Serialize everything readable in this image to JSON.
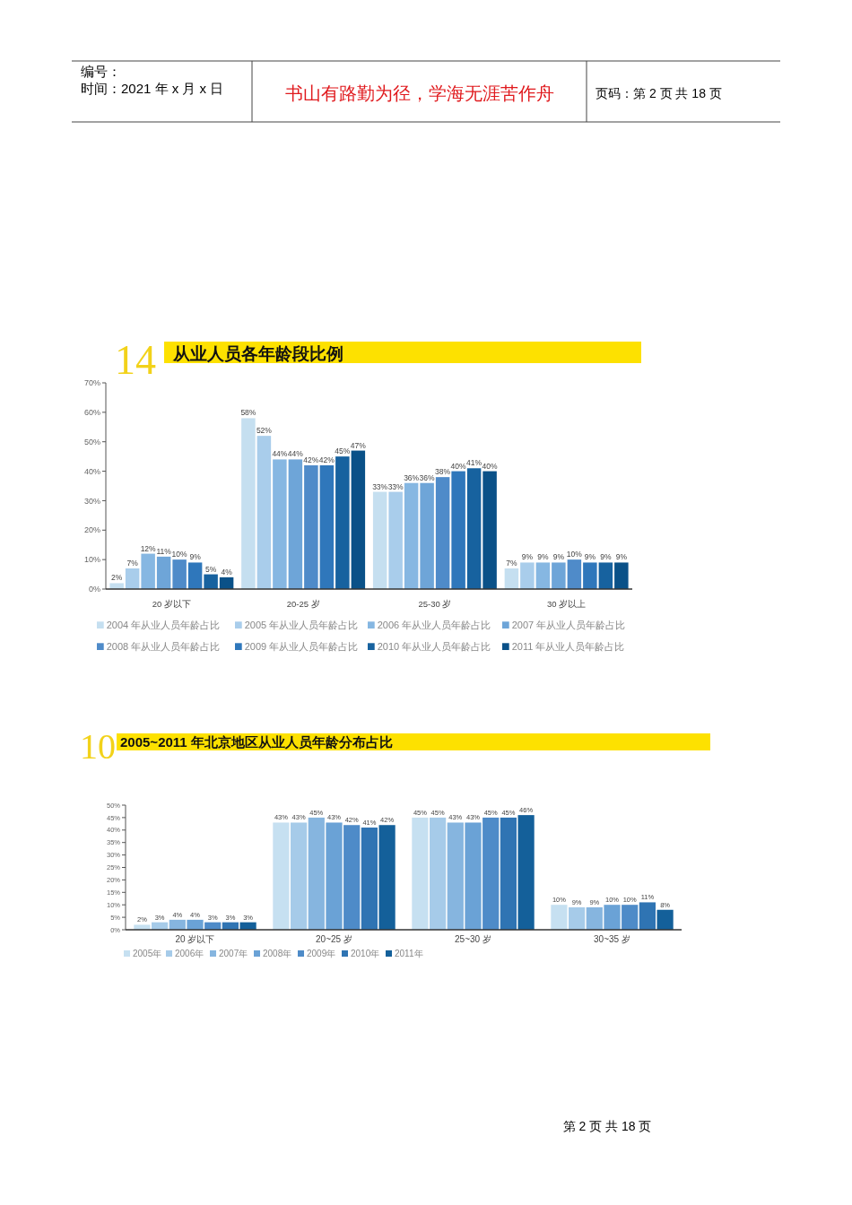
{
  "chart_data": [
    {
      "type": "bar",
      "title": "从业人员各年龄段比例",
      "annotations": [
        "14",
        "编号：",
        "时间：2021 年 x 月 x 日",
        "书山有路勤为径，学海无涯苦作舟",
        "页码：第 2 页  共 18 页"
      ],
      "categories": [
        "20 岁以下",
        "20-25 岁",
        "25-30 岁",
        "30 岁以上"
      ],
      "series": [
        {
          "name": "2004 年从业人员年龄占比",
          "color": "#c5dff0",
          "values": [
            2,
            58,
            33,
            7
          ],
          "value_labels": [
            "2%",
            "58%",
            "33%",
            "7%"
          ]
        },
        {
          "name": "2005 年从业人员年龄占比",
          "color": "#a9cdeb",
          "values": [
            7,
            52,
            33,
            9
          ],
          "value_labels": [
            "7%",
            "52%",
            "33%",
            "9%"
          ]
        },
        {
          "name": "2006 年从业人员年龄占比",
          "color": "#86b7e2",
          "values": [
            12,
            44,
            36,
            9
          ],
          "value_labels": [
            "12%",
            "44%",
            "36%",
            "9%"
          ]
        },
        {
          "name": "2007 年从业人员年龄占比",
          "color": "#6ea5d8",
          "values": [
            11,
            44,
            36,
            9
          ],
          "value_labels": [
            "11%",
            "44%",
            "36%",
            "9%"
          ]
        },
        {
          "name": "2008 年从业人员年龄占比",
          "color": "#4f8bc9",
          "values": [
            10,
            42,
            38,
            10
          ],
          "value_labels": [
            "10%",
            "42%",
            "38%",
            "10%"
          ]
        },
        {
          "name": "2009 年从业人员年龄占比",
          "color": "#2f77bb",
          "values": [
            9,
            42,
            40,
            9
          ],
          "value_labels": [
            "9%",
            "42%",
            "40%",
            "9%"
          ]
        },
        {
          "name": "2010 年从业人员年龄占比",
          "color": "#17629f",
          "values": [
            5,
            45,
            41,
            9
          ],
          "value_labels": [
            "5%",
            "45%",
            "41%",
            "9%"
          ]
        },
        {
          "name": "2011 年从业人员年龄占比",
          "color": "#0a5188",
          "values": [
            4,
            47,
            40,
            9
          ],
          "value_labels": [
            "4%",
            "47%",
            "40%",
            "9%"
          ]
        }
      ],
      "ylim": [
        0,
        70
      ],
      "yticks": [
        {
          "value": 0,
          "label": "0%"
        },
        {
          "value": 10,
          "label": "10%"
        },
        {
          "value": 20,
          "label": "20%"
        },
        {
          "value": 30,
          "label": "30%"
        },
        {
          "value": 40,
          "label": "40%"
        },
        {
          "value": 50,
          "label": "50%"
        },
        {
          "value": 60,
          "label": "60%"
        },
        {
          "value": 70,
          "label": "70%"
        }
      ],
      "legend": "bottom"
    },
    {
      "type": "bar",
      "title": "2005~2011 年北京地区从业人员年龄分布占比",
      "annotations": [
        "10",
        "第 2 页 共 18 页"
      ],
      "categories": [
        "20 岁以下",
        "20~25 岁",
        "25~30 岁",
        "30~35 岁"
      ],
      "series": [
        {
          "name": "2005年",
          "color": "#c6e0f1",
          "values": [
            2,
            43,
            45,
            10
          ],
          "value_labels": [
            "2%",
            "43%",
            "45%",
            "10%"
          ]
        },
        {
          "name": "2006年",
          "color": "#a6cbe9",
          "values": [
            3,
            43,
            45,
            9
          ],
          "value_labels": [
            "3%",
            "43%",
            "45%",
            "9%"
          ]
        },
        {
          "name": "2007年",
          "color": "#86b5df",
          "values": [
            4,
            45,
            43,
            9
          ],
          "value_labels": [
            "4%",
            "45%",
            "43%",
            "9%"
          ]
        },
        {
          "name": "2008年",
          "color": "#6aa2d6",
          "values": [
            4,
            43,
            43,
            10
          ],
          "value_labels": [
            "4%",
            "43%",
            "43%",
            "10%"
          ]
        },
        {
          "name": "2009年",
          "color": "#4e8bc8",
          "values": [
            3,
            42,
            45,
            10
          ],
          "value_labels": [
            "3%",
            "42%",
            "45%",
            "10%"
          ]
        },
        {
          "name": "2010年",
          "color": "#2f74b3",
          "values": [
            3,
            41,
            45,
            11
          ],
          "value_labels": [
            "3%",
            "41%",
            "45%",
            "11%"
          ]
        },
        {
          "name": "2011年",
          "color": "#14609a",
          "values": [
            3,
            42,
            46,
            8
          ],
          "value_labels": [
            "3%",
            "42%",
            "46%",
            "8%"
          ]
        }
      ],
      "ylim": [
        0,
        50
      ],
      "yticks": [
        {
          "value": 0,
          "label": "0%"
        },
        {
          "value": 5,
          "label": "5%"
        },
        {
          "value": 10,
          "label": "10%"
        },
        {
          "value": 15,
          "label": "15%"
        },
        {
          "value": 20,
          "label": "20%"
        },
        {
          "value": 25,
          "label": "25%"
        },
        {
          "value": 30,
          "label": "30%"
        },
        {
          "value": 35,
          "label": "35%"
        },
        {
          "value": 40,
          "label": "40%"
        },
        {
          "value": 45,
          "label": "45%"
        },
        {
          "value": 50,
          "label": "50%"
        }
      ],
      "legend": "bottom"
    }
  ]
}
